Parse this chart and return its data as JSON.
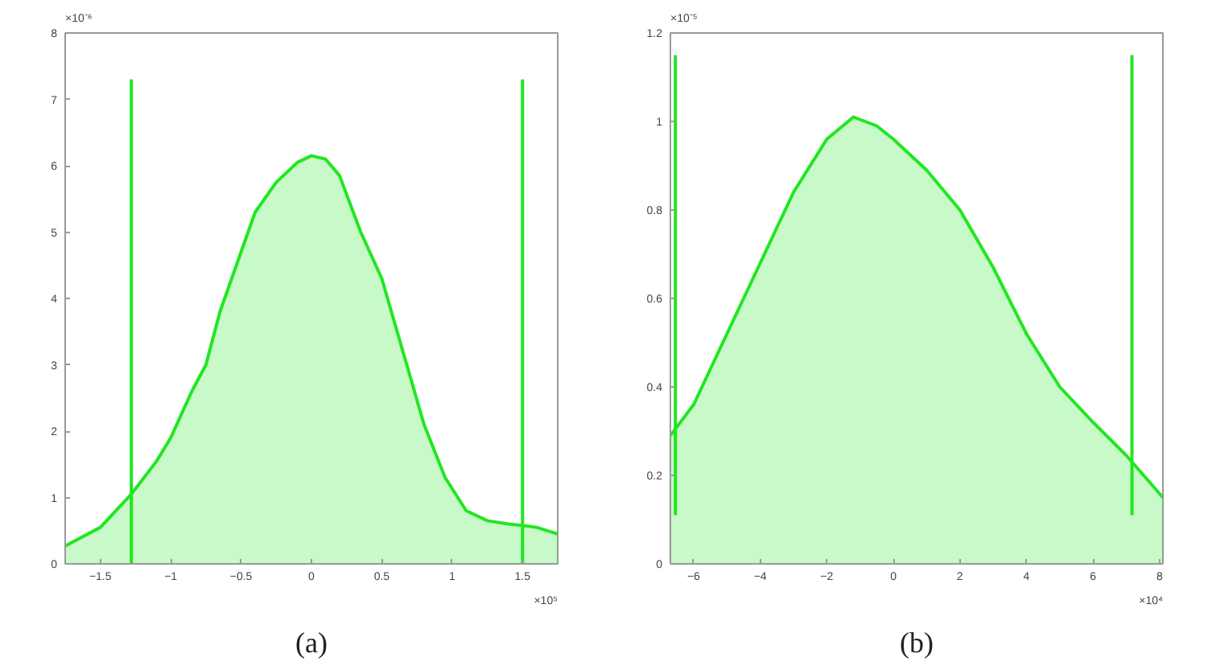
{
  "chart_data": [
    {
      "type": "area",
      "xlabel": "(a)",
      "annotations": [
        "×10⁻⁶",
        "×10⁵"
      ],
      "xlim": [
        -1.75,
        1.75
      ],
      "ylim": [
        0,
        8
      ],
      "xticks": [
        -1.5,
        -1,
        -0.5,
        0,
        0.5,
        1,
        1.5
      ],
      "yticks": [
        0,
        1,
        2,
        3,
        4,
        5,
        6,
        7,
        8
      ],
      "grid": false,
      "series": [
        {
          "color": "#22e622",
          "x": [
            -1.75,
            -1.5,
            -1.28,
            -1.1,
            -1.0,
            -0.85,
            -0.75,
            -0.65,
            -0.5,
            -0.4,
            -0.25,
            -0.1,
            0,
            0.1,
            0.2,
            0.35,
            0.5,
            0.65,
            0.8,
            0.95,
            1.1,
            1.25,
            1.4,
            1.5,
            1.6,
            1.75
          ],
          "values": [
            0.27,
            0.55,
            1.05,
            1.55,
            1.9,
            2.6,
            3.0,
            3.8,
            4.7,
            5.3,
            5.75,
            6.05,
            6.15,
            6.1,
            5.85,
            5.0,
            4.3,
            3.2,
            2.1,
            1.3,
            0.8,
            0.65,
            0.6,
            0.58,
            0.55,
            0.45
          ]
        },
        {
          "type": "line",
          "color": "#22e622",
          "x": [
            -1.28,
            -1.28
          ],
          "values": [
            0,
            7.3
          ]
        },
        {
          "type": "line",
          "color": "#22e622",
          "x": [
            1.5,
            1.5
          ],
          "values": [
            0,
            7.3
          ]
        }
      ]
    },
    {
      "type": "area",
      "xlabel": "(b)",
      "annotations": [
        "×10⁻⁵",
        "×10⁴"
      ],
      "xlim": [
        -6.7,
        8.1
      ],
      "ylim": [
        0,
        1.2
      ],
      "xticks": [
        -6,
        -4,
        -2,
        0,
        2,
        4,
        6,
        8
      ],
      "yticks": [
        0,
        0.2,
        0.4,
        0.6,
        0.8,
        1,
        1.2
      ],
      "grid": false,
      "series": [
        {
          "color": "#22e622",
          "x": [
            -6.7,
            -6,
            -5,
            -4,
            -3,
            -2,
            -1.2,
            -0.5,
            0,
            1,
            2,
            3,
            4,
            5,
            6,
            7,
            8.1
          ],
          "values": [
            0.29,
            0.36,
            0.52,
            0.68,
            0.84,
            0.96,
            1.01,
            0.99,
            0.96,
            0.89,
            0.8,
            0.67,
            0.52,
            0.4,
            0.32,
            0.245,
            0.15
          ]
        },
        {
          "type": "line",
          "color": "#22e622",
          "x": [
            -6.55,
            -6.55
          ],
          "values": [
            0.11,
            1.15
          ]
        },
        {
          "type": "line",
          "color": "#22e622",
          "x": [
            7.17,
            7.17
          ],
          "values": [
            0.11,
            1.15
          ]
        }
      ]
    }
  ]
}
